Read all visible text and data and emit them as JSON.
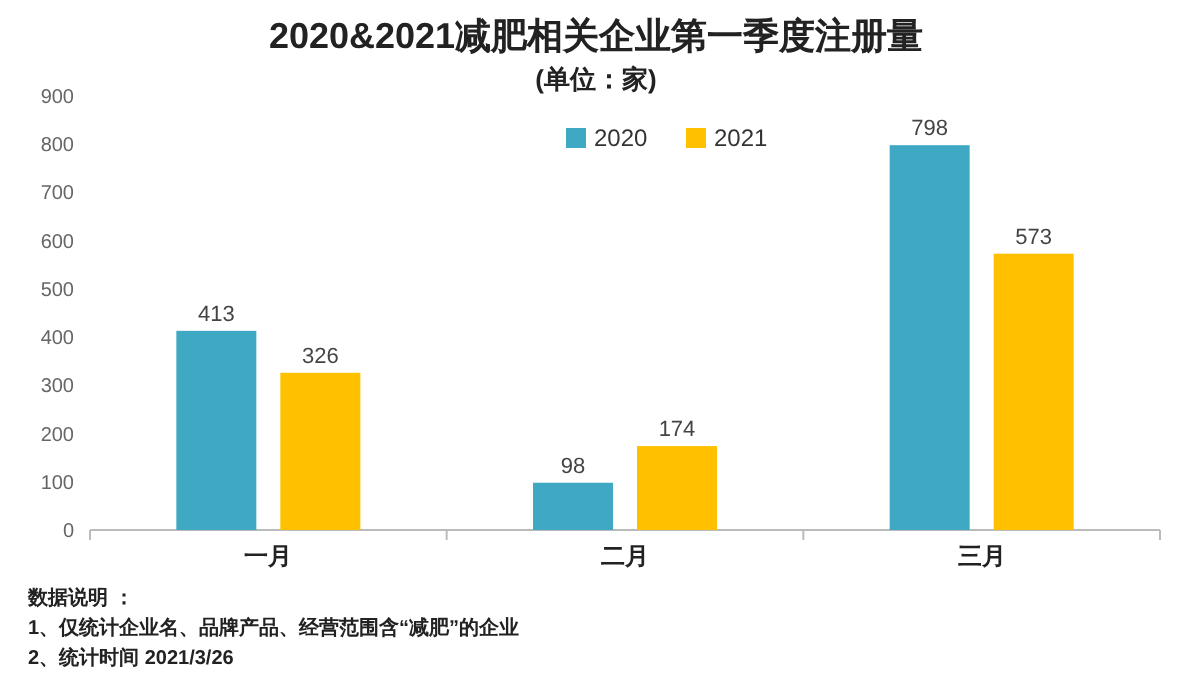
{
  "chart_data": {
    "type": "bar",
    "title": "2020&2021减肥相关企业第一季度注册量",
    "subtitle": "(单位：家)",
    "categories": [
      "一月",
      "二月",
      "三月"
    ],
    "series": [
      {
        "name": "2020",
        "color": "#3fa9c3",
        "values": [
          413,
          98,
          798
        ]
      },
      {
        "name": "2021",
        "color": "#ffc000",
        "values": [
          326,
          174,
          573
        ]
      }
    ],
    "ylim": [
      0,
      900
    ],
    "yticks": [
      0,
      100,
      200,
      300,
      400,
      500,
      600,
      700,
      800,
      900
    ],
    "data_labels": true,
    "legend": "top",
    "annotations": [
      "数据说明 ：",
      "1、仅统计企业名、品牌产品、经营范围含“减肥”的企业",
      "2、统计时间  2021/3/26"
    ]
  }
}
